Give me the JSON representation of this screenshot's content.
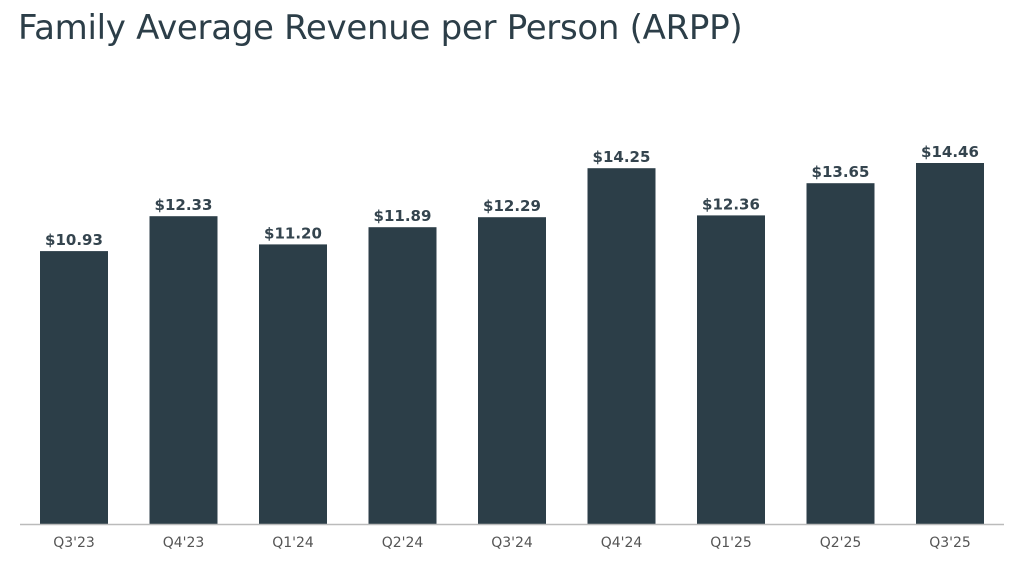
{
  "title": "Family Average Revenue per Person (ARPP)",
  "colors": {
    "bar": "#2c3e48",
    "axis": "#bbbbbb",
    "title": "#2c3e48"
  },
  "chart_data": {
    "type": "bar",
    "title": "Family Average Revenue per Person (ARPP)",
    "xlabel": "",
    "ylabel": "",
    "grid": false,
    "ylim": [
      0,
      14.46
    ],
    "categories": [
      "Q3'23",
      "Q4'23",
      "Q1'24",
      "Q2'24",
      "Q3'24",
      "Q4'24",
      "Q1'25",
      "Q2'25",
      "Q3'25"
    ],
    "values": [
      10.93,
      12.33,
      11.2,
      11.89,
      12.29,
      14.25,
      12.36,
      13.65,
      14.46
    ],
    "labels": [
      "$10.93",
      "$12.33",
      "$11.20",
      "$11.89",
      "$12.29",
      "$14.25",
      "$12.36",
      "$13.65",
      "$14.46"
    ]
  }
}
